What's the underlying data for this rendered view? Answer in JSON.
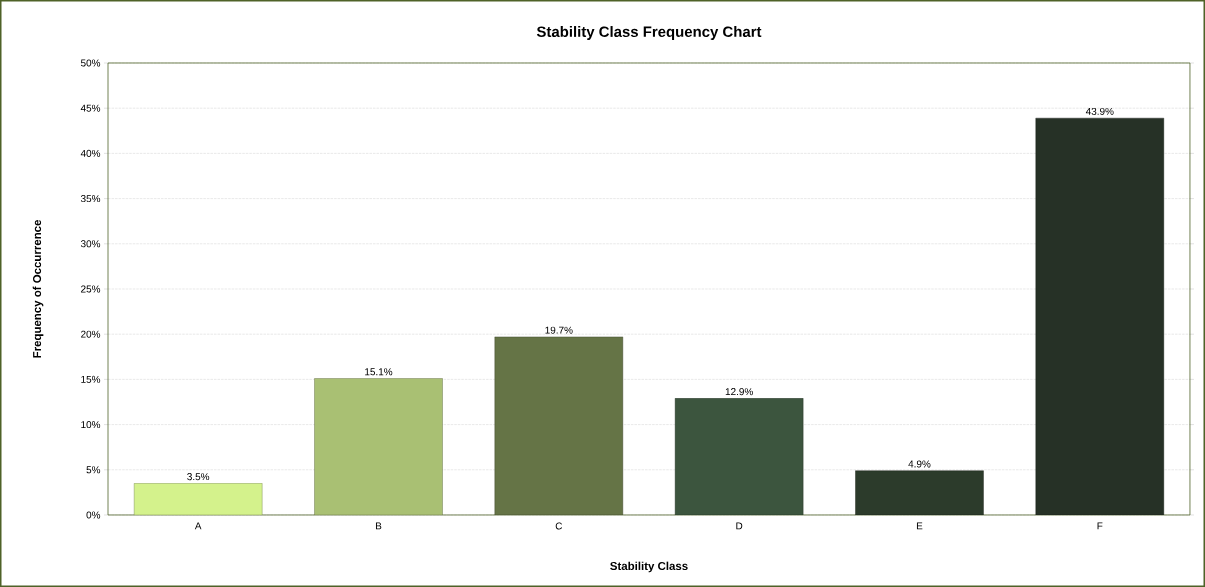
{
  "chart_data": {
    "type": "bar",
    "title": "Stability Class Frequency Chart",
    "xlabel": "Stability Class",
    "ylabel": "Frequency of Occurrence",
    "categories": [
      "A",
      "B",
      "C",
      "D",
      "E",
      "F"
    ],
    "values": [
      3.5,
      15.1,
      19.7,
      12.9,
      4.9,
      43.9
    ],
    "colors": [
      "#d4f28c",
      "#a9c073",
      "#657446",
      "#3c553e",
      "#2c3b2b",
      "#263126"
    ],
    "value_labels": [
      "3.5%",
      "15.1%",
      "19.7%",
      "12.9%",
      "4.9%",
      "43.9%"
    ],
    "ylim": [
      0,
      50
    ],
    "yticks": [
      {
        "value": 0,
        "label": "0%"
      },
      {
        "value": 5,
        "label": "5%"
      },
      {
        "value": 10,
        "label": "10%"
      },
      {
        "value": 15,
        "label": "15%"
      },
      {
        "value": 20,
        "label": "20%"
      },
      {
        "value": 25,
        "label": "25%"
      },
      {
        "value": 30,
        "label": "30%"
      },
      {
        "value": 35,
        "label": "35%"
      },
      {
        "value": 40,
        "label": "40%"
      },
      {
        "value": 45,
        "label": "45%"
      },
      {
        "value": 50,
        "label": "50%"
      }
    ],
    "grid": "y"
  }
}
